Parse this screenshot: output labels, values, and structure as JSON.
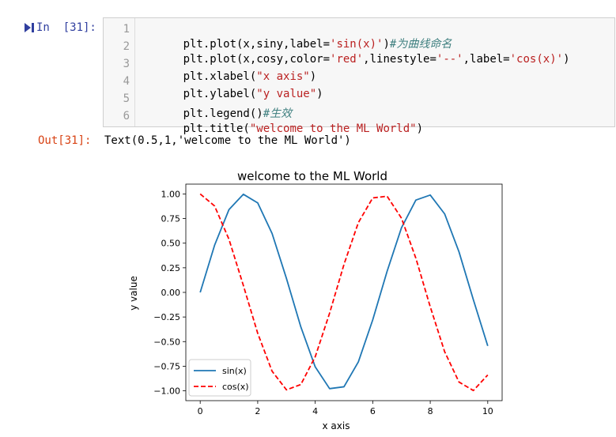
{
  "cell": {
    "input_prompt": "In  [31]:",
    "lines": [
      {
        "no": "1",
        "segments": [
          {
            "text": "plt.plot(x,siny,label=",
            "style": "plain"
          },
          {
            "text": "'sin(x)'",
            "style": "str"
          },
          {
            "text": ")",
            "style": "plain"
          },
          {
            "text": "#为曲线命名",
            "style": "cmt"
          }
        ]
      },
      {
        "no": "2",
        "segments": [
          {
            "text": "plt.plot(x,cosy,color=",
            "style": "plain"
          },
          {
            "text": "'red'",
            "style": "str"
          },
          {
            "text": ",linestyle=",
            "style": "plain"
          },
          {
            "text": "'--'",
            "style": "str"
          },
          {
            "text": ",label=",
            "style": "plain"
          },
          {
            "text": "'cos(x)'",
            "style": "str"
          },
          {
            "text": ")",
            "style": "plain"
          }
        ]
      },
      {
        "no": "3",
        "segments": [
          {
            "text": "plt.xlabel(",
            "style": "plain"
          },
          {
            "text": "\"x axis\"",
            "style": "str"
          },
          {
            "text": ")",
            "style": "plain"
          }
        ]
      },
      {
        "no": "4",
        "segments": [
          {
            "text": "plt.ylabel(",
            "style": "plain"
          },
          {
            "text": "\"y value\"",
            "style": "str"
          },
          {
            "text": ")",
            "style": "plain"
          }
        ]
      },
      {
        "no": "5",
        "segments": [
          {
            "text": "plt.legend()",
            "style": "plain"
          },
          {
            "text": "#生效",
            "style": "cmt"
          }
        ]
      },
      {
        "no": "6",
        "segments": [
          {
            "text": "plt.title(",
            "style": "plain"
          },
          {
            "text": "\"welcome to the ML World\"",
            "style": "str"
          },
          {
            "text": ")",
            "style": "plain"
          }
        ]
      }
    ]
  },
  "output": {
    "prompt": "Out[31]:",
    "text": "Text(0.5,1,'welcome to the ML World')"
  },
  "colors": {
    "input_prompt": "#303f9f",
    "output_prompt": "#d84315",
    "string": "#ba2121",
    "comment": "#408080",
    "sin_line": "#1f77b4",
    "cos_line": "#ff0000"
  },
  "chart_data": {
    "type": "line",
    "title": "welcome to the ML World",
    "xlabel": "x axis",
    "ylabel": "y value",
    "xlim": [
      -0.5,
      10.5
    ],
    "ylim": [
      -1.1,
      1.1
    ],
    "xticks": [
      "0",
      "2",
      "4",
      "6",
      "8",
      "10"
    ],
    "xtick_values": [
      0,
      2,
      4,
      6,
      8,
      10
    ],
    "yticks": [
      "1.00",
      "0.75",
      "0.50",
      "0.25",
      "0.00",
      "−0.25",
      "−0.50",
      "−0.75",
      "−1.00"
    ],
    "ytick_values": [
      1.0,
      0.75,
      0.5,
      0.25,
      0.0,
      -0.25,
      -0.5,
      -0.75,
      -1.0
    ],
    "legend_position": "lower left",
    "grid": false,
    "series": [
      {
        "name": "sin(x)",
        "color": "#1f77b4",
        "linestyle": "solid",
        "x": [
          0,
          0.5,
          1,
          1.5,
          2,
          2.5,
          3,
          3.5,
          4,
          4.5,
          5,
          5.5,
          6,
          6.5,
          7,
          7.5,
          8,
          8.5,
          9,
          9.5,
          10
        ],
        "y": [
          0.0,
          0.479,
          0.841,
          0.997,
          0.909,
          0.598,
          0.141,
          -0.351,
          -0.757,
          -0.978,
          -0.959,
          -0.706,
          -0.279,
          0.215,
          0.657,
          0.938,
          0.989,
          0.798,
          0.412,
          -0.075,
          -0.544
        ]
      },
      {
        "name": "cos(x)",
        "color": "#ff0000",
        "linestyle": "dashed",
        "x": [
          0,
          0.5,
          1,
          1.5,
          2,
          2.5,
          3,
          3.5,
          4,
          4.5,
          5,
          5.5,
          6,
          6.5,
          7,
          7.5,
          8,
          8.5,
          9,
          9.5,
          10
        ],
        "y": [
          1.0,
          0.878,
          0.54,
          0.071,
          -0.416,
          -0.801,
          -0.99,
          -0.936,
          -0.654,
          -0.211,
          0.284,
          0.709,
          0.96,
          0.977,
          0.754,
          0.347,
          -0.146,
          -0.602,
          -0.911,
          -0.997,
          -0.839
        ]
      }
    ]
  }
}
